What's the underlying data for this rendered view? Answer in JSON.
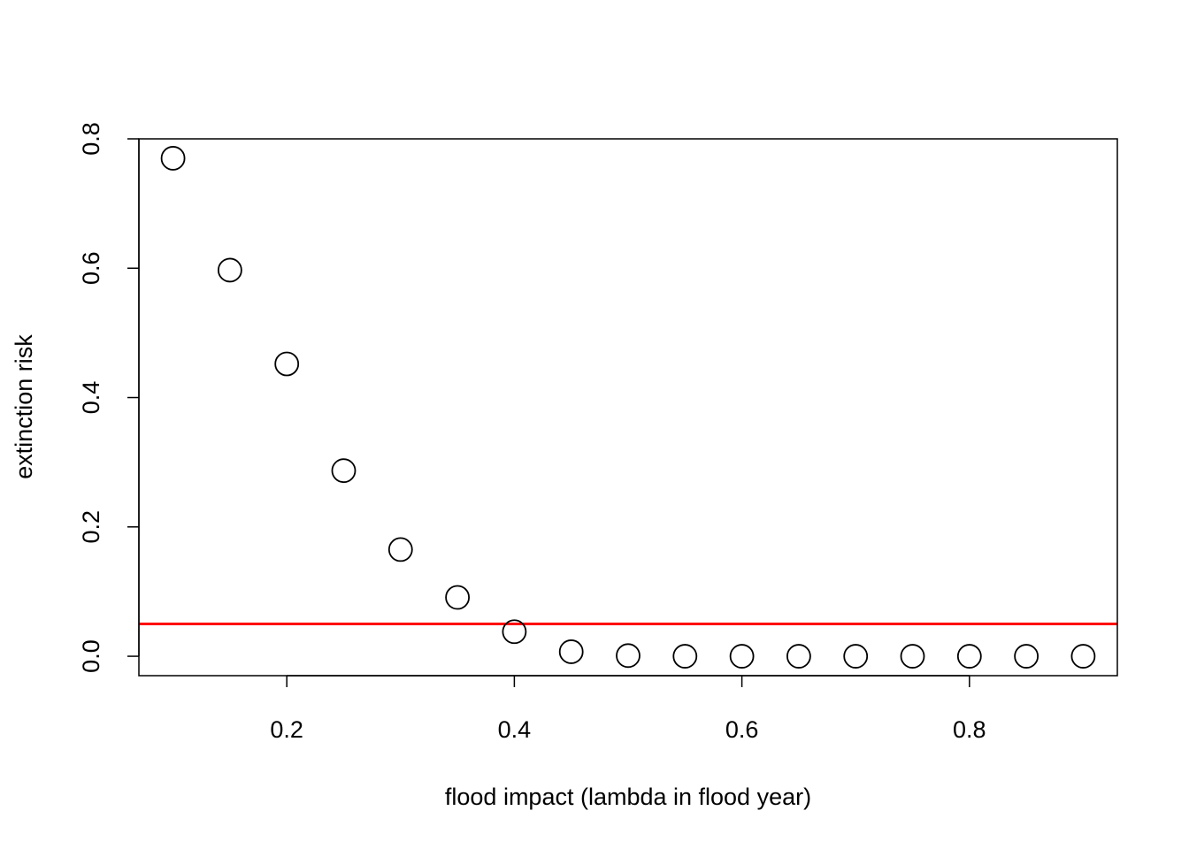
{
  "chart_data": {
    "type": "scatter",
    "title": "",
    "xlabel": "flood impact (lambda in flood year)",
    "ylabel": "extinction risk",
    "xlim": [
      0.07,
      0.93
    ],
    "ylim": [
      -0.03,
      0.8
    ],
    "xticks": [
      0.2,
      0.4,
      0.6,
      0.8
    ],
    "xtick_labels": [
      "0.2",
      "0.4",
      "0.6",
      "0.8"
    ],
    "yticks": [
      0.0,
      0.2,
      0.4,
      0.6,
      0.8
    ],
    "ytick_labels": [
      "0.0",
      "0.2",
      "0.4",
      "0.6",
      "0.8"
    ],
    "grid": false,
    "legend": false,
    "series": [
      {
        "marker": "open-circle",
        "color": "#000000",
        "x": [
          0.1,
          0.15,
          0.2,
          0.25,
          0.3,
          0.35,
          0.4,
          0.45,
          0.5,
          0.55,
          0.6,
          0.65,
          0.7,
          0.75,
          0.8,
          0.85,
          0.9
        ],
        "y": [
          0.77,
          0.597,
          0.452,
          0.287,
          0.165,
          0.091,
          0.038,
          0.007,
          0.001,
          0.0,
          0.0,
          0.0,
          0.0,
          0.0,
          0.0,
          0.0,
          0.0
        ]
      }
    ],
    "reference_lines": [
      {
        "orientation": "horizontal",
        "y": 0.05,
        "color": "#ff0000"
      }
    ]
  }
}
